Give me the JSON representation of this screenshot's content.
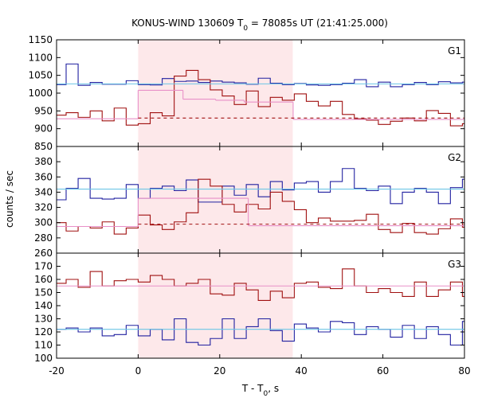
{
  "chart_data": {
    "type": "line",
    "title": {
      "main": "KONUS-WIND 130609 T",
      "sub": "0",
      "rest": " = 78085s UT (21:41:25.000)"
    },
    "xlabel": {
      "main": "T - T",
      "sub": "0",
      "rest": ", s"
    },
    "ylabel": "counts / sec",
    "xlim": [
      -20,
      80
    ],
    "xticks": [
      "-20",
      "0",
      "20",
      "40",
      "60",
      "80"
    ],
    "shaded_interval": {
      "x": [
        0,
        37.9
      ],
      "color": "#fde8ea"
    },
    "bin_width": 2.944,
    "x_start": -20.6,
    "colors": {
      "red": "#a01010",
      "blue": "#2020a0",
      "lightblue": "#6cc6e6",
      "pink": "#e890c8"
    },
    "panels": [
      {
        "name": "G1",
        "ylim": [
          850,
          1150
        ],
        "yticks": [
          "850",
          "900",
          "950",
          "1000",
          "1050",
          "1100",
          "1150"
        ],
        "series": [
          {
            "name": "",
            "color": "blue",
            "style": "step",
            "values": [
              1024,
              1082,
              1022,
              1030,
              1025,
              1025,
              1035,
              1024,
              1023,
              1041,
              1033,
              1034,
              1030,
              1034,
              1031,
              1029,
              1025,
              1042,
              1028,
              1024,
              1027,
              1023,
              1022,
              1024,
              1028,
              1038,
              1018,
              1031,
              1018,
              1024,
              1030,
              1024,
              1032,
              1029,
              1031,
              1018,
              1025,
              1026,
              1020,
              1013,
              1021,
              1015,
              1024,
              1018
            ]
          },
          {
            "name": "",
            "color": "red",
            "style": "step",
            "values": [
              938,
              945,
              932,
              950,
              922,
              958,
              910,
              914,
              945,
              936,
              1048,
              1064,
              1038,
              1009,
              992,
              968,
              1006,
              962,
              988,
              980,
              998,
              977,
              964,
              977,
              940,
              928,
              924,
              912,
              921,
              930,
              922,
              951,
              943,
              908,
              914,
              919,
              929,
              924,
              942,
              930,
              912,
              900,
              927,
              920
            ]
          },
          {
            "name": "",
            "color": "lightblue",
            "style": "flat",
            "segments": [
              [
                -20,
                80,
                1026
              ]
            ]
          },
          {
            "name": "",
            "color": "pink",
            "style": "flat",
            "segments": [
              [
                -20,
                0,
                928
              ],
              [
                0,
                11,
                1008
              ],
              [
                11,
                19,
                983
              ],
              [
                19,
                26,
                980
              ],
              [
                26,
                38,
                975
              ],
              [
                38,
                80,
                926
              ]
            ]
          },
          {
            "name": "",
            "color": "red",
            "style": "dashed",
            "segments": [
              [
                0,
                80,
                930
              ]
            ]
          }
        ]
      },
      {
        "name": "G2",
        "ylim": [
          260,
          400
        ],
        "yticks": [
          "260",
          "280",
          "300",
          "320",
          "340",
          "360",
          "380"
        ],
        "series": [
          {
            "name": "",
            "color": "blue",
            "style": "step",
            "values": [
              330,
              345,
              358,
              332,
              331,
              332,
              350,
              332,
              345,
              348,
              342,
              356,
              327,
              327,
              348,
              336,
              350,
              334,
              354,
              343,
              352,
              354,
              340,
              354,
              371,
              345,
              342,
              348,
              325,
              340,
              345,
              340,
              325,
              346,
              357,
              339,
              354,
              345,
              330,
              342,
              326,
              340,
              346,
              345
            ]
          },
          {
            "name": "",
            "color": "red",
            "style": "step",
            "values": [
              300,
              289,
              295,
              293,
              301,
              285,
              293,
              310,
              297,
              291,
              301,
              313,
              357,
              348,
              324,
              314,
              324,
              318,
              340,
              328,
              317,
              300,
              306,
              302,
              302,
              303,
              311,
              291,
              287,
              299,
              287,
              285,
              292,
              305,
              294,
              300,
              282,
              291,
              295,
              286,
              289,
              298,
              294,
              299
            ]
          },
          {
            "name": "",
            "color": "lightblue",
            "style": "flat",
            "segments": [
              [
                -20,
                80,
                344
              ]
            ]
          },
          {
            "name": "",
            "color": "pink",
            "style": "flat",
            "segments": [
              [
                -20,
                0,
                295
              ],
              [
                0,
                27,
                332
              ],
              [
                27,
                80,
                296
              ]
            ]
          },
          {
            "name": "",
            "color": "red",
            "style": "dashed",
            "segments": [
              [
                0,
                80,
                298
              ]
            ]
          }
        ]
      },
      {
        "name": "G3",
        "ylim": [
          100,
          180
        ],
        "yticks": [
          "100",
          "110",
          "120",
          "130",
          "140",
          "150",
          "160",
          "170"
        ],
        "series": [
          {
            "name": "",
            "color": "red",
            "style": "step",
            "values": [
              157,
              160,
              154,
              166,
              155,
              159,
              160,
              158,
              163,
              160,
              155,
              157,
              160,
              149,
              148,
              157,
              152,
              144,
              151,
              146,
              157,
              158,
              154,
              153,
              168,
              155,
              150,
              153,
              150,
              147,
              158,
              147,
              152,
              158,
              147,
              160,
              166,
              152,
              158,
              163,
              145,
              160,
              148,
              153
            ]
          },
          {
            "name": "",
            "color": "blue",
            "style": "step",
            "values": [
              122,
              123,
              120,
              123,
              117,
              118,
              125,
              117,
              122,
              114,
              130,
              112,
              110,
              115,
              130,
              115,
              124,
              130,
              121,
              113,
              126,
              123,
              120,
              128,
              127,
              118,
              124,
              122,
              116,
              125,
              115,
              124,
              118,
              110,
              128,
              124,
              120,
              125,
              110,
              124,
              118,
              122,
              119,
              126
            ]
          },
          {
            "name": "",
            "color": "lightblue",
            "style": "flat",
            "segments": [
              [
                -20,
                80,
                122
              ]
            ]
          },
          {
            "name": "",
            "color": "pink",
            "style": "flat",
            "segments": [
              [
                -20,
                80,
                155
              ]
            ]
          }
        ]
      }
    ]
  }
}
